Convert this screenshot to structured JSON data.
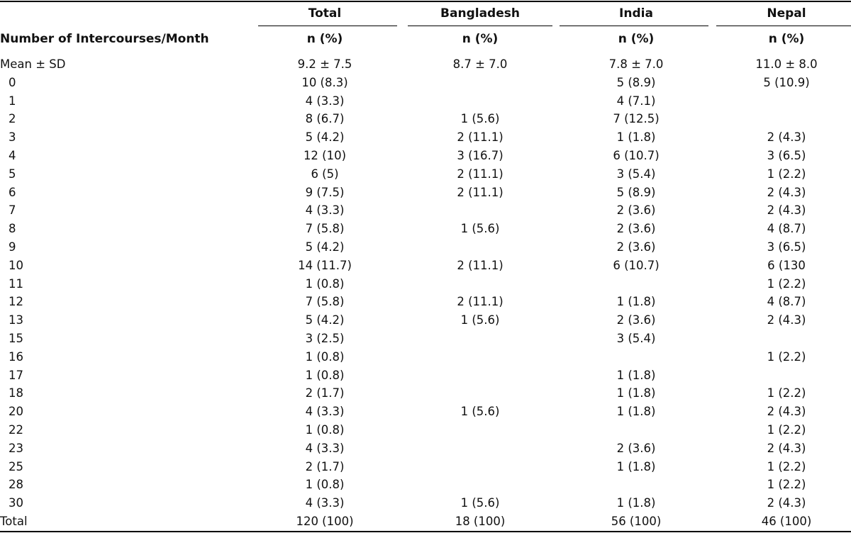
{
  "table": {
    "stub_header": "Number of Intercourses/Month",
    "columns": [
      {
        "name": "Total",
        "sub": "n (%)"
      },
      {
        "name": "Bangladesh",
        "sub": "n (%)"
      },
      {
        "name": "India",
        "sub": "n (%)"
      },
      {
        "name": "Nepal",
        "sub": "n (%)"
      }
    ],
    "rows": [
      {
        "label": "Mean ± SD",
        "cells": [
          "9.2 ± 7.5",
          "8.7 ± 7.0",
          "7.8 ± 7.0",
          "11.0 ± 8.0"
        ]
      },
      {
        "label": "0",
        "cells": [
          "10 (8.3)",
          "",
          "5 (8.9)",
          "5 (10.9)"
        ]
      },
      {
        "label": "1",
        "cells": [
          "4 (3.3)",
          "",
          "4 (7.1)",
          ""
        ]
      },
      {
        "label": "2",
        "cells": [
          "8 (6.7)",
          "1 (5.6)",
          "7 (12.5)",
          ""
        ]
      },
      {
        "label": "3",
        "cells": [
          "5 (4.2)",
          "2 (11.1)",
          "1 (1.8)",
          "2 (4.3)"
        ]
      },
      {
        "label": "4",
        "cells": [
          "12 (10)",
          "3 (16.7)",
          "6 (10.7)",
          "3 (6.5)"
        ]
      },
      {
        "label": "5",
        "cells": [
          "6 (5)",
          "2 (11.1)",
          "3 (5.4)",
          "1 (2.2)"
        ]
      },
      {
        "label": "6",
        "cells": [
          "9 (7.5)",
          "2 (11.1)",
          "5 (8.9)",
          "2 (4.3)"
        ]
      },
      {
        "label": "7",
        "cells": [
          "4 (3.3)",
          "",
          "2 (3.6)",
          "2 (4.3)"
        ]
      },
      {
        "label": "8",
        "cells": [
          "7 (5.8)",
          "1 (5.6)",
          "2 (3.6)",
          "4 (8.7)"
        ]
      },
      {
        "label": "9",
        "cells": [
          "5 (4.2)",
          "",
          "2 (3.6)",
          "3 (6.5)"
        ]
      },
      {
        "label": "10",
        "cells": [
          "14 (11.7)",
          "2 (11.1)",
          "6 (10.7)",
          "6 (130"
        ]
      },
      {
        "label": "11",
        "cells": [
          "1 (0.8)",
          "",
          "",
          "1 (2.2)"
        ]
      },
      {
        "label": "12",
        "cells": [
          "7 (5.8)",
          "2 (11.1)",
          "1 (1.8)",
          "4 (8.7)"
        ]
      },
      {
        "label": "13",
        "cells": [
          "5 (4.2)",
          "1 (5.6)",
          "2 (3.6)",
          "2 (4.3)"
        ]
      },
      {
        "label": "15",
        "cells": [
          "3 (2.5)",
          "",
          "3 (5.4)",
          ""
        ]
      },
      {
        "label": "16",
        "cells": [
          "1 (0.8)",
          "",
          "",
          "1 (2.2)"
        ]
      },
      {
        "label": "17",
        "cells": [
          "1 (0.8)",
          "",
          "1 (1.8)",
          ""
        ]
      },
      {
        "label": "18",
        "cells": [
          "2 (1.7)",
          "",
          "1 (1.8)",
          "1 (2.2)"
        ]
      },
      {
        "label": "20",
        "cells": [
          "4 (3.3)",
          "1 (5.6)",
          "1 (1.8)",
          "2 (4.3)"
        ]
      },
      {
        "label": "22",
        "cells": [
          "1 (0.8)",
          "",
          "",
          "1 (2.2)"
        ]
      },
      {
        "label": "23",
        "cells": [
          "4 (3.3)",
          "",
          "2 (3.6)",
          "2 (4.3)"
        ]
      },
      {
        "label": "25",
        "cells": [
          "2 (1.7)",
          "",
          "1 (1.8)",
          "1 (2.2)"
        ]
      },
      {
        "label": "28",
        "cells": [
          "1 (0.8)",
          "",
          "",
          "1 (2.2)"
        ]
      },
      {
        "label": "30",
        "cells": [
          "4 (3.3)",
          "1 (5.6)",
          "1 (1.8)",
          "2 (4.3)"
        ]
      },
      {
        "label": "Total",
        "cells": [
          "120 (100)",
          "18 (100)",
          "56 (100)",
          "46 (100)"
        ]
      }
    ]
  }
}
